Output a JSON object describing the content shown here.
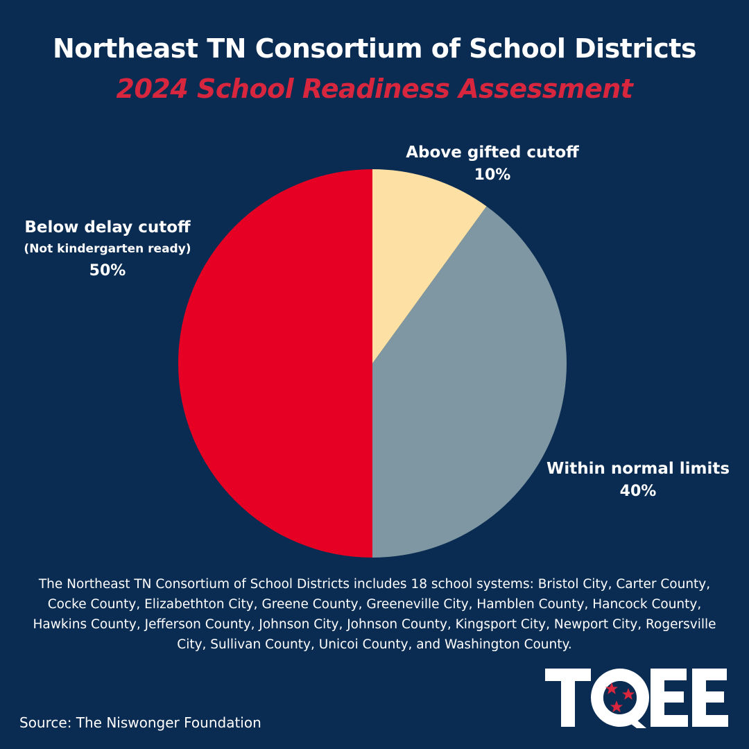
{
  "header": {
    "title": "Northeast TN Consortium  of School Districts",
    "subtitle": "2024 School Readiness Assessment"
  },
  "chart_data": {
    "type": "pie",
    "title": "Northeast TN Consortium  of School Districts",
    "subtitle": "2024 School Readiness Assessment",
    "slices": [
      {
        "label": "Above gifted cutoff",
        "sublabel": "",
        "pct_label": "10%",
        "value": 10,
        "color": "#fde0a3"
      },
      {
        "label": "Within normal limits",
        "sublabel": "",
        "pct_label": "40%",
        "value": 40,
        "color": "#7e97a2"
      },
      {
        "label": "Below delay cutoff",
        "sublabel": "(Not kindergarten ready)",
        "pct_label": "50%",
        "value": 50,
        "color": "#e60023"
      }
    ]
  },
  "footnote": "The Northeast TN Consortium of School Districts includes 18 school systems: Bristol City, Carter County, Cocke County, Elizabethton City, Greene County, Greeneville City, Hamblen County, Hancock County, Hawkins County, Jefferson County, Johnson City, Johnson County, Kingsport City, Newport City, Rogersville City, Sullivan County, Unicoi County, and Washington County.",
  "source": "Source: The Niswonger Foundation",
  "logo": {
    "text": "TQEE",
    "icon": "tennessee-tri-star-icon",
    "star_color": "#d7263d"
  }
}
